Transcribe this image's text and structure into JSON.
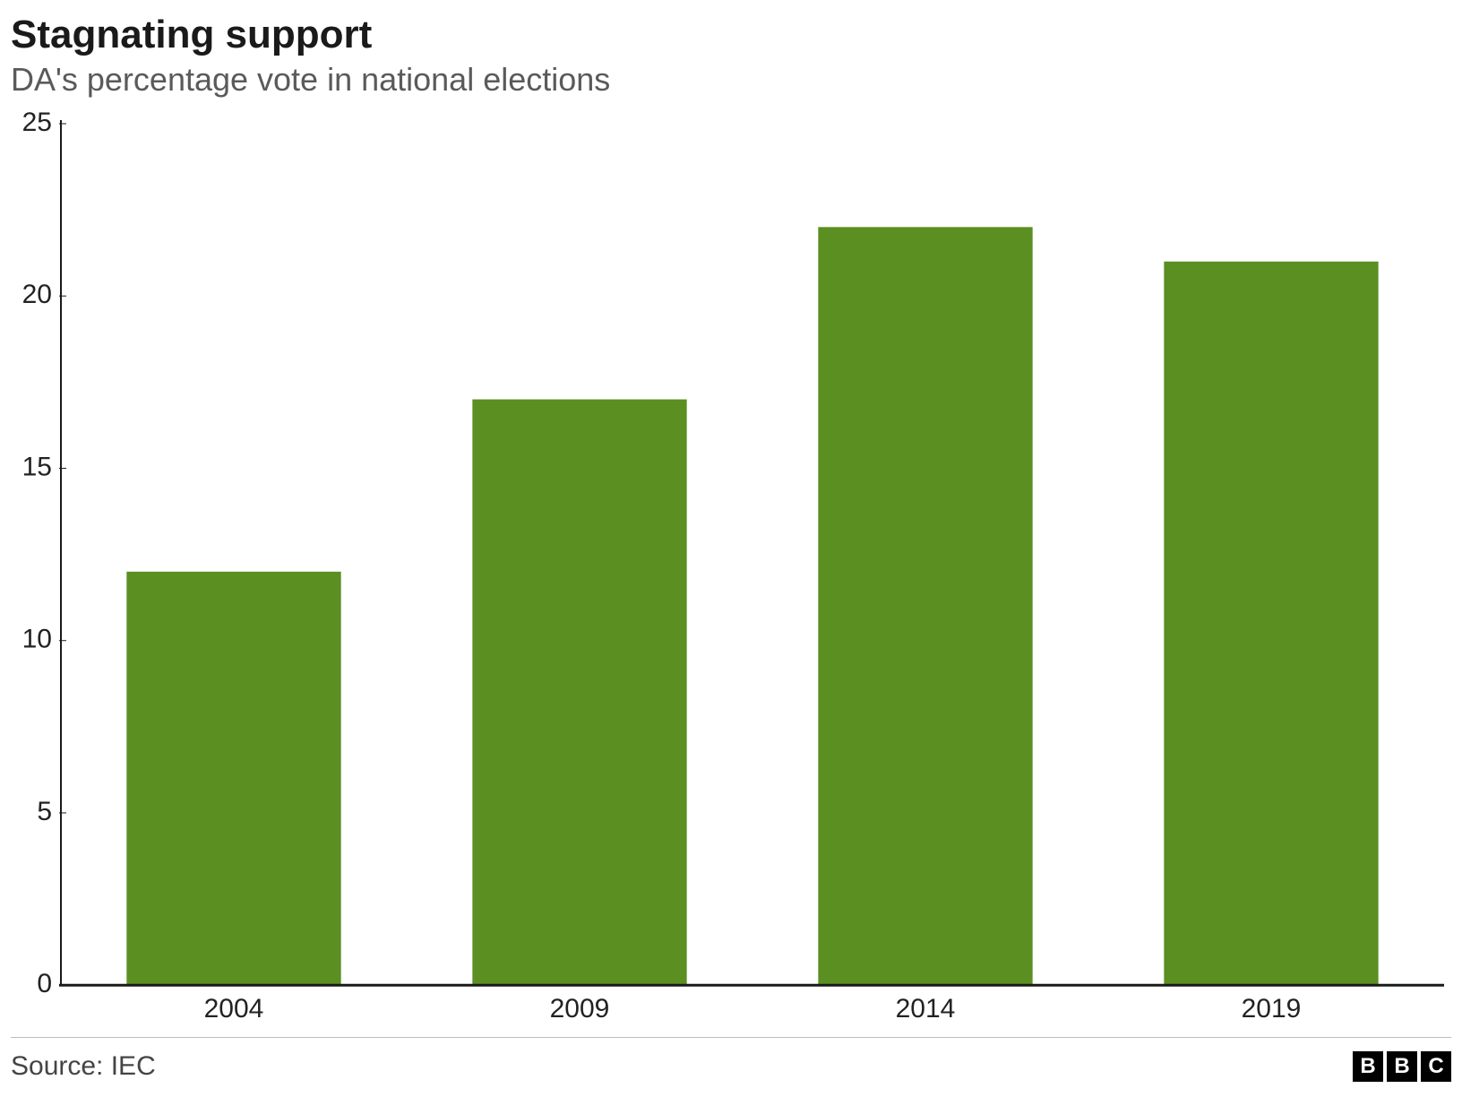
{
  "header": {
    "title": "Stagnating support",
    "subtitle": "DA's percentage vote in national elections"
  },
  "chart": {
    "type": "bar",
    "categories": [
      "2004",
      "2009",
      "2014",
      "2019"
    ],
    "values": [
      12,
      17,
      22,
      21
    ],
    "bar_color": "#5b8f22",
    "ylim": [
      0,
      25
    ],
    "ytick_step": 5,
    "axis_color": "#1a1a1a",
    "background_color": "#ffffff",
    "bar_width_ratio": 0.62,
    "title_fontsize": 44,
    "subtitle_fontsize": 36,
    "tick_fontsize": 30,
    "axis_line_width": 2
  },
  "footer": {
    "source": "Source: IEC",
    "logo_letters": [
      "B",
      "B",
      "C"
    ],
    "logo_bg": "#000000",
    "logo_fg": "#ffffff",
    "divider_color": "#bdbdbd"
  }
}
